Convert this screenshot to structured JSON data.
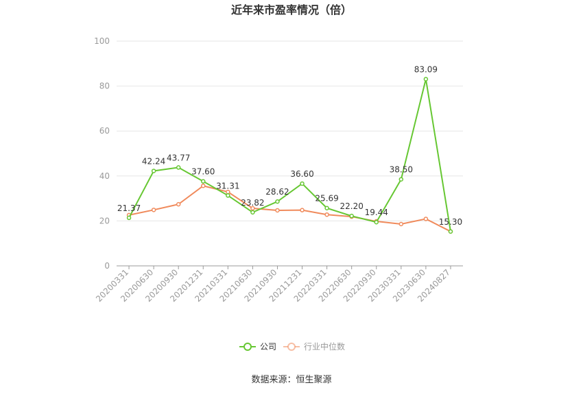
{
  "chart_data": {
    "type": "line",
    "title": "近年来市盈率情况（倍）",
    "categories": [
      "20200331",
      "20200630",
      "20200930",
      "20201231",
      "20210331",
      "20210630",
      "20210930",
      "20211231",
      "20220331",
      "20220630",
      "20220930",
      "20230331",
      "20230630",
      "20240827"
    ],
    "ylim": [
      0,
      100
    ],
    "yticks": [
      0,
      20,
      40,
      60,
      80,
      100
    ],
    "grid": true,
    "legend_position": "bottom",
    "series": [
      {
        "name": "公司",
        "color": "#66c732",
        "values": [
          21.37,
          42.24,
          43.77,
          37.6,
          31.31,
          23.82,
          28.62,
          36.6,
          25.69,
          22.2,
          19.44,
          38.5,
          83.09,
          15.3
        ],
        "labels": [
          "21.37",
          "42.24",
          "43.77",
          "37.60",
          "31.31",
          "23.82",
          "28.62",
          "36.60",
          "25.69",
          "22.20",
          "19.44",
          "38.50",
          "83.09",
          "15.30"
        ]
      },
      {
        "name": "行业中位数",
        "color": "#f08a5b",
        "values": [
          22.6,
          24.9,
          27.4,
          35.6,
          32.9,
          25.6,
          24.7,
          24.8,
          22.8,
          21.9,
          19.8,
          18.6,
          20.9,
          15.3
        ]
      }
    ],
    "source": "数据来源：恒生聚源"
  }
}
